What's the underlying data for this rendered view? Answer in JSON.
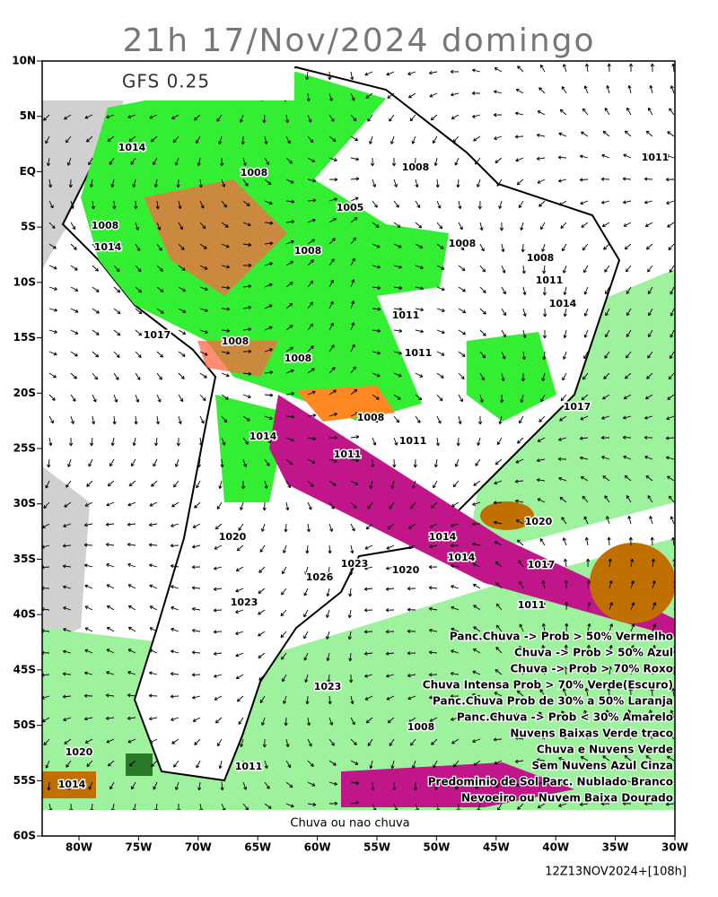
{
  "title": "21h 17/Nov/2024 domingo",
  "model_label": "GFS 0.25",
  "lat_labels": [
    "10N",
    "5N",
    "EQ",
    "5S",
    "10S",
    "15S",
    "20S",
    "25S",
    "30S",
    "35S",
    "40S",
    "45S",
    "50S",
    "55S",
    "60S"
  ],
  "lon_labels": [
    "80W",
    "75W",
    "70W",
    "65W",
    "60W",
    "55W",
    "50W",
    "45W",
    "40W",
    "35W",
    "30W"
  ],
  "isobar_labels": [
    "1014",
    "1008",
    "1008",
    "1011",
    "1005",
    "1008",
    "1014",
    "1008",
    "1008",
    "1008",
    "1011",
    "1014",
    "1011",
    "1017",
    "1008",
    "1011",
    "1008",
    "1017",
    "1008",
    "1011",
    "1014",
    "1011",
    "1020",
    "1020",
    "1014",
    "1014",
    "1017",
    "1023",
    "1020",
    "1026",
    "1023",
    "1011",
    "1023",
    "1020",
    "1011",
    "1014",
    "1008"
  ],
  "legend": [
    "Panc.Chuva -> Prob > 50% Vermelho",
    "Chuva -> Prob > 50% Azul",
    "Chuva -> Prob > 70% Roxo",
    "Chuva Intensa Prob > 70% Verde(Escuro)",
    "Panc.Chuva Prob de 30% a 50% Laranja",
    "Panc.Chuva -> Prob < 30% Amarelo",
    "Nuvens Baixas Verde traco",
    "Chuva e Nuvens Verde",
    "Sem Nuvens Azul Cinza",
    "Predominio de Sol Parc. Nublado Branco",
    "Nevoeiro ou Nuvem Baixa Dourado"
  ],
  "bottom_label": "Chuva ou nao chuva",
  "run_label": "12Z13NOV2024+[108h]"
}
